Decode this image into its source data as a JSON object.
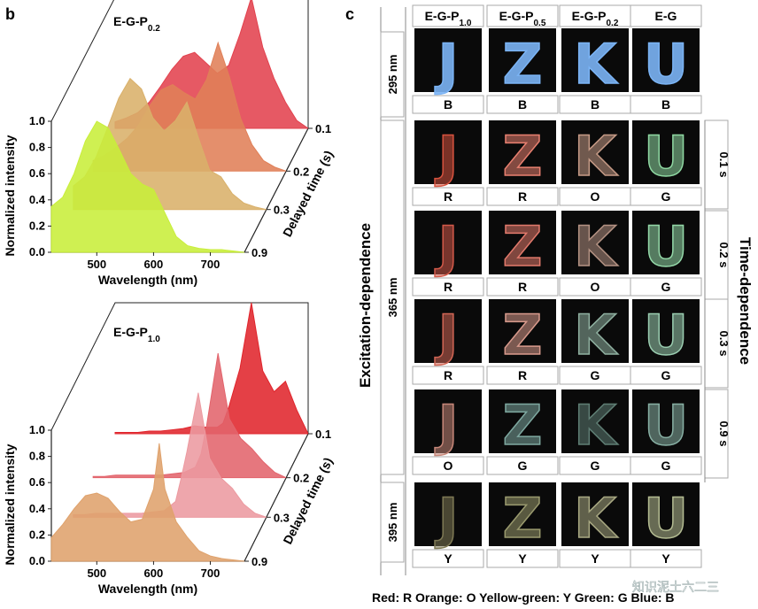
{
  "figure": {
    "panel_b_label": "b",
    "panel_c_label": "c",
    "legend_text": "Red: R Orange: O Yellow-green: Y Green: G Blue: B",
    "watermark": "知识泥土六二三"
  },
  "chart_data": [
    {
      "type": "line",
      "title_main": "E-G-P",
      "title_sub": "0.2",
      "xlabel": "Wavelength (nm)",
      "ylabel": "Normalized intensity",
      "zlabel": "Delayed time (s)",
      "xlim": [
        420,
        760
      ],
      "ylim": [
        0,
        1.0
      ],
      "xticks": [
        "500",
        "600",
        "700"
      ],
      "yticks": [
        "0.0",
        "0.2",
        "0.4",
        "0.6",
        "0.8",
        "1.0"
      ],
      "zticks": [
        "0.1",
        "0.2",
        "0.3",
        "0.9"
      ],
      "series": [
        {
          "delay": 0.9,
          "color": "#c8ee3a",
          "x": [
            420,
            440,
            460,
            480,
            500,
            520,
            540,
            560,
            580,
            600,
            620,
            640,
            660,
            680,
            700,
            720,
            740,
            760
          ],
          "y": [
            0.35,
            0.42,
            0.6,
            0.85,
            1.0,
            0.95,
            0.78,
            0.6,
            0.52,
            0.48,
            0.3,
            0.12,
            0.05,
            0.03,
            0.02,
            0.02,
            0.01,
            0.0
          ]
        },
        {
          "delay": 0.3,
          "color": "#d9b06a",
          "x": [
            420,
            440,
            460,
            480,
            500,
            520,
            540,
            560,
            580,
            600,
            620,
            640,
            660,
            680,
            700,
            720,
            740,
            760
          ],
          "y": [
            0.18,
            0.25,
            0.4,
            0.62,
            0.85,
            1.0,
            0.92,
            0.7,
            0.6,
            0.68,
            0.82,
            0.55,
            0.3,
            0.25,
            0.12,
            0.05,
            0.02,
            0.0
          ]
        },
        {
          "delay": 0.2,
          "color": "#e08058",
          "x": [
            420,
            440,
            460,
            480,
            500,
            520,
            540,
            560,
            580,
            600,
            620,
            640,
            660,
            680,
            700,
            720,
            740,
            760
          ],
          "y": [
            0.08,
            0.12,
            0.18,
            0.25,
            0.35,
            0.5,
            0.62,
            0.66,
            0.6,
            0.55,
            0.7,
            0.98,
            0.72,
            0.4,
            0.2,
            0.08,
            0.03,
            0.0
          ]
        },
        {
          "delay": 0.1,
          "color": "#e2424e",
          "x": [
            420,
            440,
            460,
            480,
            500,
            520,
            540,
            560,
            580,
            600,
            620,
            640,
            660,
            680,
            700,
            720,
            740,
            760
          ],
          "y": [
            0.05,
            0.08,
            0.12,
            0.2,
            0.32,
            0.45,
            0.55,
            0.58,
            0.5,
            0.42,
            0.48,
            0.72,
            1.0,
            0.62,
            0.38,
            0.2,
            0.06,
            0.0
          ]
        }
      ]
    },
    {
      "type": "line",
      "title_main": "E-G-P",
      "title_sub": "1.0",
      "xlabel": "Wavelength (nm)",
      "ylabel": "Normalized intensity",
      "zlabel": "Delayed time (s)",
      "xlim": [
        420,
        760
      ],
      "ylim": [
        0,
        1.0
      ],
      "xticks": [
        "500",
        "600",
        "700"
      ],
      "yticks": [
        "0.0",
        "0.2",
        "0.4",
        "0.6",
        "0.8",
        "1.0"
      ],
      "zticks": [
        "0.1",
        "0.2",
        "0.3",
        "0.9"
      ],
      "series": [
        {
          "delay": 0.9,
          "color": "#dfa26c",
          "x": [
            420,
            440,
            460,
            480,
            500,
            520,
            540,
            560,
            580,
            600,
            610,
            620,
            640,
            660,
            680,
            700,
            720,
            740,
            760
          ],
          "y": [
            0.18,
            0.28,
            0.4,
            0.5,
            0.52,
            0.48,
            0.38,
            0.3,
            0.32,
            0.55,
            0.9,
            0.55,
            0.3,
            0.18,
            0.08,
            0.04,
            0.02,
            0.01,
            0.0
          ]
        },
        {
          "delay": 0.3,
          "color": "#ec9aa0",
          "x": [
            420,
            440,
            460,
            480,
            500,
            520,
            540,
            560,
            580,
            600,
            610,
            620,
            640,
            660,
            680,
            700,
            720,
            740,
            760
          ],
          "y": [
            0.02,
            0.02,
            0.03,
            0.03,
            0.03,
            0.03,
            0.03,
            0.04,
            0.05,
            0.12,
            0.3,
            0.5,
            0.95,
            0.45,
            0.3,
            0.22,
            0.1,
            0.03,
            0.0
          ]
        },
        {
          "delay": 0.2,
          "color": "#e2646c",
          "x": [
            420,
            440,
            460,
            480,
            500,
            520,
            540,
            560,
            580,
            600,
            610,
            620,
            640,
            660,
            680,
            700,
            720,
            740,
            760
          ],
          "y": [
            0.01,
            0.01,
            0.02,
            0.02,
            0.02,
            0.02,
            0.02,
            0.03,
            0.04,
            0.08,
            0.18,
            0.4,
            0.95,
            0.45,
            0.3,
            0.22,
            0.12,
            0.04,
            0.0
          ]
        },
        {
          "delay": 0.1,
          "color": "#e0252c",
          "x": [
            420,
            440,
            460,
            480,
            500,
            520,
            540,
            560,
            580,
            600,
            610,
            620,
            640,
            660,
            680,
            700,
            720,
            740,
            760
          ],
          "y": [
            0.01,
            0.01,
            0.01,
            0.02,
            0.02,
            0.03,
            0.04,
            0.06,
            0.05,
            0.05,
            0.08,
            0.2,
            0.5,
            1.0,
            0.48,
            0.32,
            0.4,
            0.18,
            0.0
          ]
        }
      ]
    }
  ],
  "grid": {
    "columns": [
      {
        "main": "E-G-P",
        "sub": "1.0"
      },
      {
        "main": "E-G-P",
        "sub": "0.5"
      },
      {
        "main": "E-G-P",
        "sub": "0.2"
      },
      {
        "main": "E-G",
        "sub": ""
      }
    ],
    "letters": [
      "J",
      "Z",
      "K",
      "U"
    ],
    "left_axis_label": "Excitation-dependence",
    "right_axis_label": "Time-dependence",
    "excitation_labels": [
      "295 nm",
      "365 nm",
      "395 nm"
    ],
    "time_labels": [
      "0.1 s",
      "0.2 s",
      "0.3 s",
      "0.9 s"
    ],
    "rows": [
      {
        "codes": [
          "B",
          "B",
          "B",
          "B"
        ],
        "colors": [
          "#7bb4f5",
          "#7bb4f5",
          "#7bb4f5",
          "#7bb4f5"
        ]
      },
      {
        "codes": [
          "R",
          "R",
          "O",
          "G"
        ],
        "colors": [
          "#d8533f",
          "#e88070",
          "#c59a86",
          "#8fd8a2"
        ]
      },
      {
        "codes": [
          "R",
          "R",
          "O",
          "G"
        ],
        "colors": [
          "#d45a4a",
          "#e27a6c",
          "#b49283",
          "#94d8a8"
        ]
      },
      {
        "codes": [
          "R",
          "R",
          "G",
          "G"
        ],
        "colors": [
          "#d26655",
          "#d89a8c",
          "#8fb0a0",
          "#9acdb0"
        ]
      },
      {
        "codes": [
          "O",
          "G",
          "G",
          "G"
        ],
        "colors": [
          "#c8887a",
          "#7ea8a0",
          "#5f7e74",
          "#88b0a4"
        ]
      },
      {
        "codes": [
          "Y",
          "Y",
          "Y",
          "Y"
        ],
        "colors": [
          "#7f7a55",
          "#9a9a6e",
          "#a8a882",
          "#b4bc92"
        ]
      }
    ]
  }
}
